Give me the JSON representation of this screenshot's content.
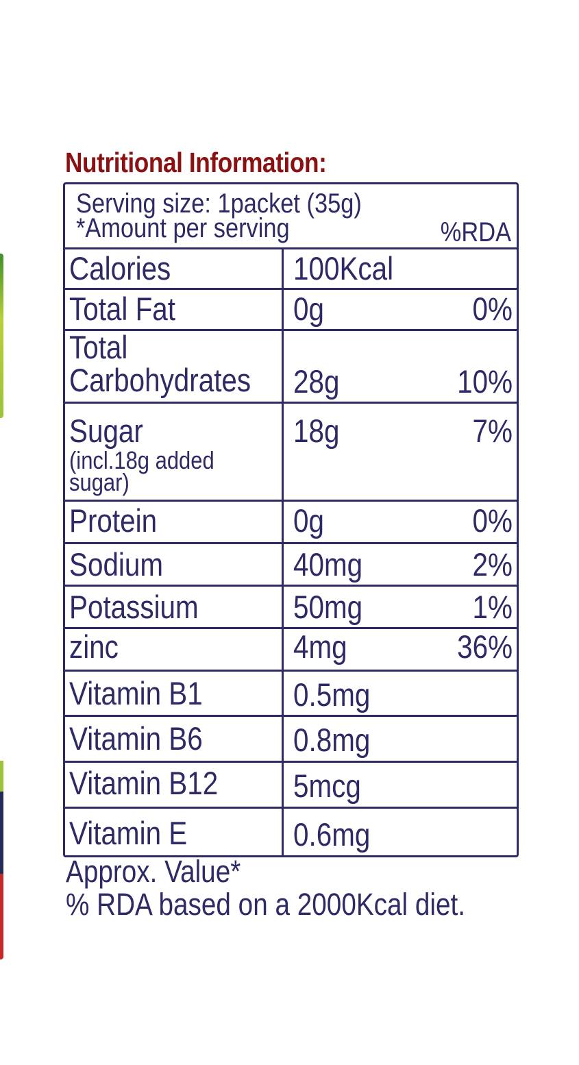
{
  "title": "Nutritional Information:",
  "header": {
    "serving_size": "Serving size: 1packet (35g)",
    "amount_per_serving": "*Amount per serving",
    "rda_label": "%RDA"
  },
  "rows": [
    {
      "nutrient": "Calories",
      "amount": "100Kcal",
      "rda": ""
    },
    {
      "nutrient": "Total Fat",
      "amount": "0g",
      "rda": "0%"
    },
    {
      "nutrient_line1": "Total",
      "nutrient_line2": "Carbohydrates",
      "amount": "28g",
      "rda": "10%"
    },
    {
      "nutrient": "Sugar",
      "note_line1": "(incl.18g added",
      "note_line2": "sugar)",
      "amount": "18g",
      "rda": "7%"
    },
    {
      "nutrient": "Protein",
      "amount": "0g",
      "rda": "0%"
    },
    {
      "nutrient": "Sodium",
      "amount": "40mg",
      "rda": "2%"
    },
    {
      "nutrient": "Potassium",
      "amount": "50mg",
      "rda": "1%"
    },
    {
      "nutrient": "zinc",
      "amount": "4mg",
      "rda": "36%"
    },
    {
      "nutrient": "Vitamin B1",
      "amount": "0.5mg",
      "rda": ""
    },
    {
      "nutrient": "Vitamin B6",
      "amount": "0.8mg",
      "rda": ""
    },
    {
      "nutrient": "Vitamin B12",
      "amount": "5mcg",
      "rda": ""
    },
    {
      "nutrient": "Vitamin E",
      "amount": "0.6mg",
      "rda": ""
    }
  ],
  "footer": {
    "line1": "Approx. Value*",
    "line2": "% RDA based on a 2000Kcal diet."
  },
  "colors": {
    "title": "#8b1212",
    "text": "#2e2a66",
    "edge_green": "#9cc33a",
    "edge_navy": "#232a5a",
    "edge_red": "#c62828"
  }
}
